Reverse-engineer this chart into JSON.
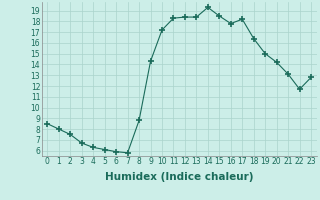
{
  "x": [
    0,
    1,
    2,
    3,
    4,
    5,
    6,
    7,
    8,
    9,
    10,
    11,
    12,
    13,
    14,
    15,
    16,
    17,
    18,
    19,
    20,
    21,
    22,
    23
  ],
  "y": [
    8.5,
    8.0,
    7.5,
    6.7,
    6.3,
    6.1,
    5.9,
    5.8,
    8.8,
    14.3,
    17.2,
    18.3,
    18.4,
    18.4,
    19.3,
    18.5,
    17.8,
    18.2,
    16.4,
    15.0,
    14.2,
    13.1,
    11.7,
    12.8
  ],
  "line_color": "#1a6b5a",
  "marker": "+",
  "marker_size": 4,
  "marker_linewidth": 1.2,
  "bg_color": "#cceee8",
  "grid_color": "#aad4cc",
  "xlabel": "Humidex (Indice chaleur)",
  "ylabel": "",
  "title": "",
  "xlim": [
    -0.5,
    23.5
  ],
  "ylim": [
    5.5,
    19.8
  ],
  "yticks": [
    6,
    7,
    8,
    9,
    10,
    11,
    12,
    13,
    14,
    15,
    16,
    17,
    18,
    19
  ],
  "xticks": [
    0,
    1,
    2,
    3,
    4,
    5,
    6,
    7,
    8,
    9,
    10,
    11,
    12,
    13,
    14,
    15,
    16,
    17,
    18,
    19,
    20,
    21,
    22,
    23
  ],
  "xtick_labels": [
    "0",
    "1",
    "2",
    "3",
    "4",
    "5",
    "6",
    "7",
    "8",
    "9",
    "10",
    "11",
    "12",
    "13",
    "14",
    "15",
    "16",
    "17",
    "18",
    "19",
    "20",
    "21",
    "22",
    "23"
  ],
  "tick_fontsize": 5.5,
  "xlabel_fontsize": 7.5
}
